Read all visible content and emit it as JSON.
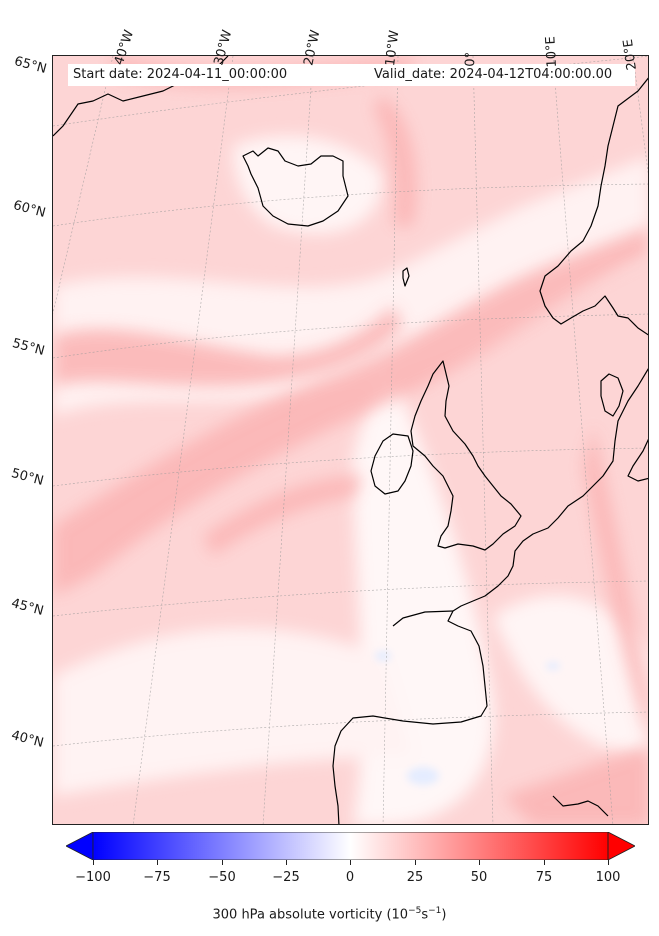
{
  "header": {
    "start_date": "Start date: 2024-04-11_00:00:00",
    "valid_date": "Valid_date: 2024-04-12T04:00:00.00"
  },
  "longitude_labels": [
    "40°W",
    "30°W",
    "20°W",
    "10°W",
    "0°",
    "10°E",
    "20°E"
  ],
  "latitude_labels": [
    "65°N",
    "60°N",
    "55°N",
    "50°N",
    "45°N",
    "40°N"
  ],
  "colorbar": {
    "ticks": [
      "−100",
      "−75",
      "−50",
      "−25",
      "0",
      "25",
      "50",
      "75",
      "100"
    ],
    "label": "300 hPa absolute vorticity (10",
    "label_exp1": "−5",
    "label_mid": "s",
    "label_exp2": "−1",
    "label_end": ")",
    "range": [
      -100,
      100
    ],
    "colormap": "bwr",
    "extend": "both",
    "colors": {
      "min": "#0000ff",
      "mid": "#ffffff",
      "max": "#ff0000"
    }
  },
  "map": {
    "field": "300 hPa absolute vorticity",
    "coastline_color": "#000000",
    "gridline_style": "dotted"
  }
}
